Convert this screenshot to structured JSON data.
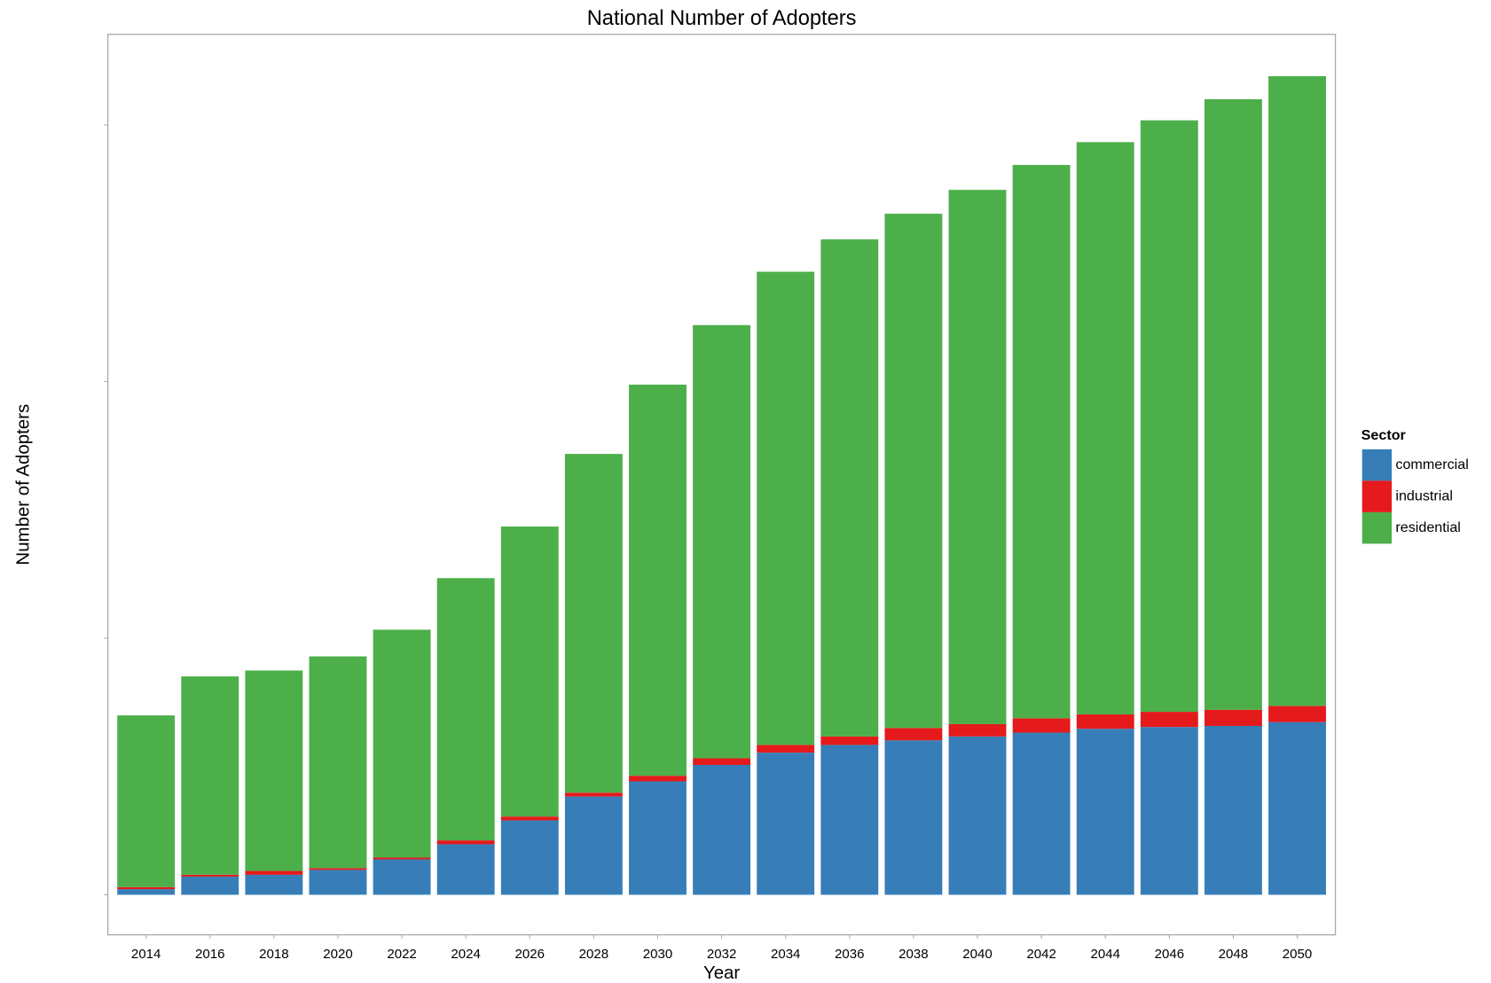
{
  "chart_data": {
    "type": "stacked_bar",
    "title": "National Number of Adopters",
    "x_label": "Year",
    "y_label": "Number of Adopters",
    "legend_title": "Sector",
    "legend_position": "right",
    "categories": [
      "2014",
      "2016",
      "2018",
      "2020",
      "2022",
      "2024",
      "2026",
      "2028",
      "2030",
      "2032",
      "2034",
      "2036",
      "2038",
      "2040",
      "2042",
      "2044",
      "2046",
      "2048",
      "2050"
    ],
    "series": [
      {
        "name": "commercial",
        "color": "#377eb8",
        "values": [
          0.022,
          0.071,
          0.078,
          0.097,
          0.138,
          0.197,
          0.29,
          0.383,
          0.442,
          0.506,
          0.554,
          0.584,
          0.602,
          0.617,
          0.632,
          0.647,
          0.654,
          0.658,
          0.673
        ]
      },
      {
        "name": "industrial",
        "color": "#e41a1c",
        "values": [
          0.008,
          0.007,
          0.015,
          0.007,
          0.007,
          0.015,
          0.015,
          0.015,
          0.022,
          0.026,
          0.03,
          0.033,
          0.048,
          0.048,
          0.056,
          0.056,
          0.059,
          0.063,
          0.063
        ]
      },
      {
        "name": "residential",
        "color": "#4daf4a",
        "values": [
          0.669,
          0.773,
          0.781,
          0.825,
          0.888,
          1.022,
          1.13,
          1.32,
          1.524,
          1.688,
          1.844,
          1.937,
          2.004,
          2.082,
          2.156,
          2.23,
          2.305,
          2.379,
          2.454
        ]
      }
    ],
    "ylim": [
      -0.156,
      3.353
    ],
    "yticks": [
      0,
      1,
      2,
      3
    ],
    "grid": false
  }
}
